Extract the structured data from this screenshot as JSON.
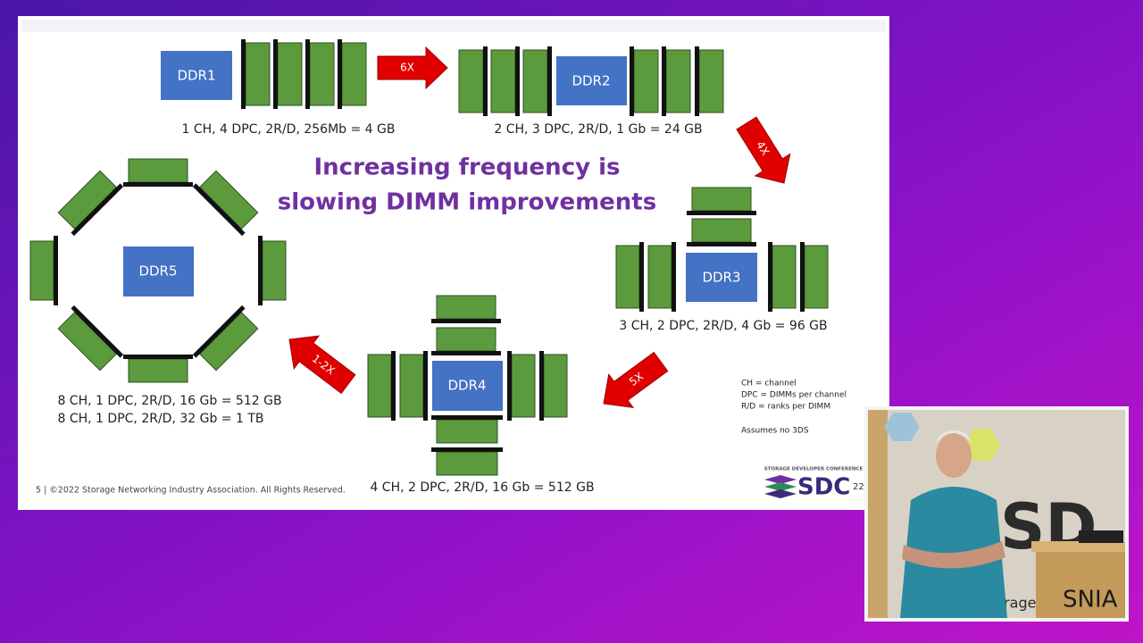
{
  "slide": {
    "title": [
      "Increasing frequency is",
      "slowing DIMM improvements"
    ],
    "nodes": [
      {
        "label": "DDR1",
        "caption": [
          "1 CH, 4 DPC, 2R/D, 256Mb = 4 GB"
        ]
      },
      {
        "label": "DDR2",
        "caption": [
          "2 CH, 3 DPC, 2R/D, 1 Gb = 24 GB"
        ]
      },
      {
        "label": "DDR3",
        "caption": [
          "3 CH, 2 DPC, 2R/D, 4 Gb = 96 GB"
        ]
      },
      {
        "label": "DDR4",
        "caption": [
          "4 CH, 2 DPC, 2R/D, 16 Gb = 512 GB"
        ]
      },
      {
        "label": "DDR5",
        "caption": [
          "8 CH, 1 DPC, 2R/D, 16 Gb = 512 GB",
          "8 CH, 1 DPC, 2R/D, 32 Gb = 1 TB"
        ]
      }
    ],
    "arrows": [
      "6X",
      "4X",
      "5X",
      "1-2X"
    ],
    "legend": [
      "CH = channel",
      "DPC = DIMMs per channel",
      "R/D = ranks per DIMM",
      "Assumes no 3DS"
    ],
    "footer": "5 | ©2022 Storage Networking Industry Association. All Rights Reserved.",
    "logo": {
      "caption": "STORAGE DEVELOPER CONFERENCE",
      "name": "SDC",
      "year": "22"
    }
  },
  "webcam": {
    "signs": [
      "SD",
      "torage",
      "SNIA"
    ]
  }
}
